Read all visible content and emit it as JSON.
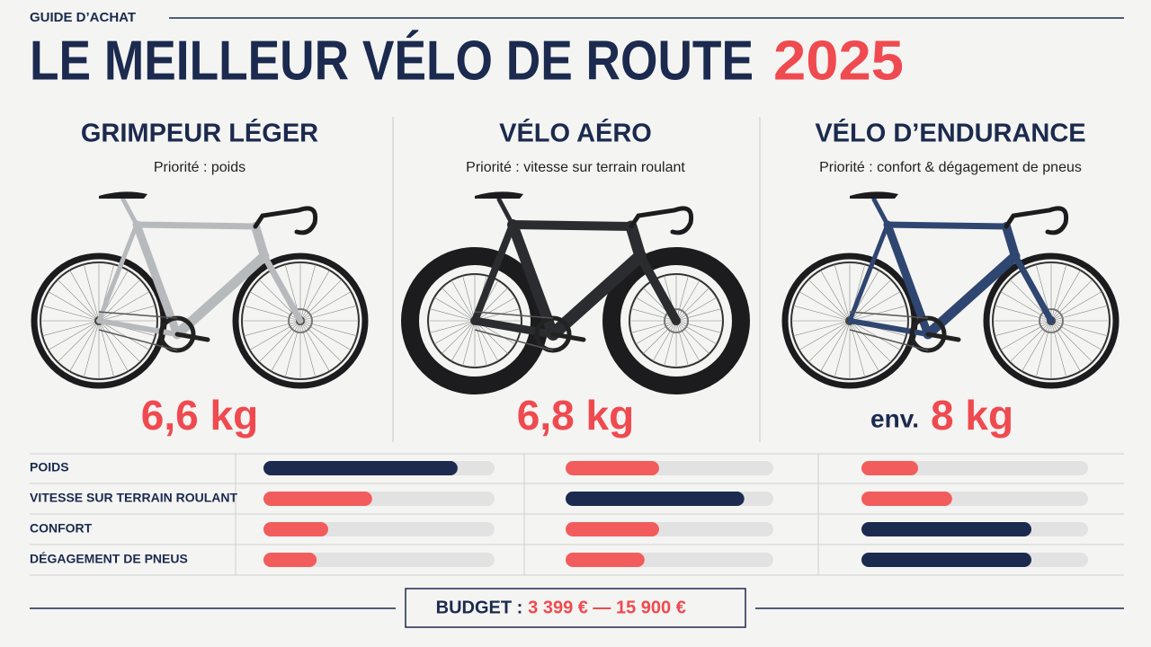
{
  "header": {
    "kicker": "GUIDE D’ACHAT",
    "title": "LE MEILLEUR VÉLO DE ROUTE",
    "year": "2025"
  },
  "bikes": [
    {
      "name": "GRIMPEUR LÉGER",
      "priority": "Priorité : poids",
      "weight": "6,6 kg",
      "frame_color": "#b7babd"
    },
    {
      "name": "VÉLO AÉRO",
      "priority": "Priorité : vitesse sur terrain roulant",
      "weight": "6,8 kg",
      "frame_color": "#2b2c30"
    },
    {
      "name": "VÉLO D’ENDURANCE",
      "priority": "Priorité : confort & dégagement de pneus",
      "weight_prefix": "env.",
      "weight": "8 kg",
      "frame_color": "#2e4670"
    }
  ],
  "ratings": {
    "criteria": [
      "POIDS",
      "VITESSE SUR TERRAIN ROULANT",
      "CONFORT",
      "DÉGAGEMENT DE PNEUS"
    ],
    "xlim": [
      0,
      100
    ],
    "columns": [
      {
        "values": [
          84,
          47,
          28,
          23
        ],
        "colors": [
          "#1b2a4e",
          "#f25c5c",
          "#f25c5c",
          "#f25c5c"
        ]
      },
      {
        "values": [
          45,
          86,
          45,
          38
        ],
        "colors": [
          "#f25c5c",
          "#1b2a4e",
          "#f25c5c",
          "#f25c5c"
        ]
      },
      {
        "values": [
          25,
          40,
          75,
          75
        ],
        "colors": [
          "#f25c5c",
          "#f25c5c",
          "#1b2a4e",
          "#1b2a4e"
        ]
      }
    ]
  },
  "budget": {
    "label": "BUDGET :",
    "range": "3 399 € — 15 900 €"
  }
}
